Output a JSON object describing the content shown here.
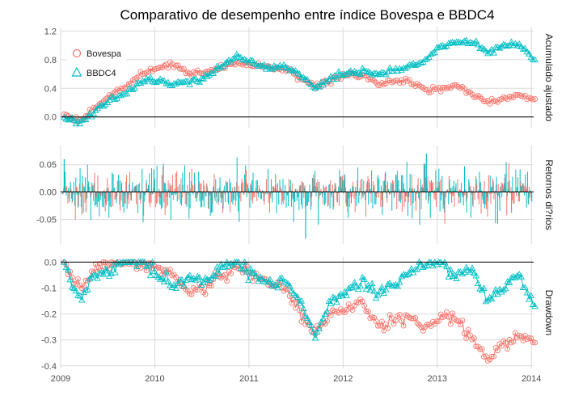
{
  "chart_data": {
    "type": "line",
    "title": "Comparativo de desempenho entre índice Bovespa e BBDC4",
    "x_range": [
      "2009-01-01",
      "2014-01-10"
    ],
    "x_ticks": [
      "2009",
      "2010",
      "2011",
      "2012",
      "2013",
      "2014"
    ],
    "grid": true,
    "legend": {
      "placement": "top-left",
      "entries": [
        {
          "name": "Bovespa",
          "color": "#F8766D",
          "shape": "circle"
        },
        {
          "name": "BBDC4",
          "color": "#00BFC4",
          "shape": "triangle"
        }
      ]
    },
    "panels": [
      {
        "strip_label": "Acumulado ajustado",
        "type": "line-with-markers",
        "ylim": [
          -0.15,
          1.25
        ],
        "y_ticks": [
          "0.0",
          "0.4",
          "0.8",
          "1.2"
        ],
        "y_tick_values": [
          0.0,
          0.4,
          0.8,
          1.2
        ],
        "zero_line": true,
        "x": [
          "2009-01",
          "2009-03",
          "2009-05",
          "2009-07",
          "2009-09",
          "2009-11",
          "2010-01",
          "2010-03",
          "2010-05",
          "2010-07",
          "2010-09",
          "2010-11",
          "2011-01",
          "2011-03",
          "2011-05",
          "2011-07",
          "2011-09",
          "2011-11",
          "2012-01",
          "2012-03",
          "2012-05",
          "2012-07",
          "2012-09",
          "2012-11",
          "2013-01",
          "2013-03",
          "2013-05",
          "2013-07",
          "2013-09",
          "2013-11",
          "2014-01"
        ],
        "series": [
          {
            "name": "Bovespa",
            "values": [
              0.0,
              -0.05,
              0.15,
              0.3,
              0.45,
              0.6,
              0.7,
              0.72,
              0.62,
              0.62,
              0.7,
              0.75,
              0.72,
              0.7,
              0.68,
              0.55,
              0.42,
              0.5,
              0.58,
              0.6,
              0.45,
              0.52,
              0.5,
              0.38,
              0.4,
              0.45,
              0.32,
              0.18,
              0.25,
              0.3,
              0.25
            ]
          },
          {
            "name": "BBDC4",
            "values": [
              0.0,
              -0.08,
              0.1,
              0.25,
              0.35,
              0.5,
              0.5,
              0.45,
              0.5,
              0.55,
              0.7,
              0.85,
              0.75,
              0.7,
              0.72,
              0.6,
              0.4,
              0.55,
              0.62,
              0.65,
              0.6,
              0.65,
              0.7,
              0.8,
              0.98,
              1.05,
              1.05,
              0.9,
              1.0,
              1.02,
              0.8
            ]
          }
        ]
      },
      {
        "strip_label": "Retornos di?rios",
        "type": "spikes",
        "ylim": [
          -0.095,
          0.085
        ],
        "y_ticks": [
          "0.05",
          "0.00",
          "-0.05"
        ],
        "y_tick_values": [
          0.05,
          0.0,
          -0.05
        ],
        "zero_line": true,
        "approx_daily_std": {
          "Bovespa": 0.018,
          "BBDC4": 0.022
        },
        "notable_values": [
          {
            "date": "2011-08-08",
            "series": "BBDC4",
            "value": -0.085
          },
          {
            "date": "2009-01-15",
            "series": "BBDC4",
            "value": 0.06
          },
          {
            "date": "2012-11-20",
            "series": "BBDC4",
            "value": 0.07
          }
        ]
      },
      {
        "strip_label": "Drawdown",
        "type": "line-with-markers",
        "ylim": [
          -0.41,
          0.02
        ],
        "y_ticks": [
          "0.0",
          "-0.1",
          "-0.2",
          "-0.3",
          "-0.4"
        ],
        "y_tick_values": [
          0.0,
          -0.1,
          -0.2,
          -0.3,
          -0.4
        ],
        "zero_line": true,
        "x": [
          "2009-01",
          "2009-03",
          "2009-05",
          "2009-07",
          "2009-09",
          "2009-11",
          "2010-01",
          "2010-03",
          "2010-05",
          "2010-07",
          "2010-09",
          "2010-11",
          "2011-01",
          "2011-03",
          "2011-05",
          "2011-07",
          "2011-09",
          "2011-11",
          "2012-01",
          "2012-03",
          "2012-05",
          "2012-07",
          "2012-09",
          "2012-11",
          "2013-01",
          "2013-03",
          "2013-05",
          "2013-07",
          "2013-09",
          "2013-11",
          "2014-01"
        ],
        "series": [
          {
            "name": "Bovespa",
            "values": [
              0.0,
              -0.1,
              -0.02,
              0.0,
              0.0,
              0.0,
              -0.02,
              -0.05,
              -0.12,
              -0.1,
              -0.05,
              -0.02,
              -0.05,
              -0.08,
              -0.1,
              -0.18,
              -0.28,
              -0.2,
              -0.18,
              -0.15,
              -0.25,
              -0.22,
              -0.22,
              -0.25,
              -0.2,
              -0.22,
              -0.28,
              -0.38,
              -0.32,
              -0.28,
              -0.31
            ]
          },
          {
            "name": "BBDC4",
            "values": [
              0.0,
              -0.15,
              -0.05,
              -0.02,
              0.0,
              0.0,
              -0.05,
              -0.1,
              -0.05,
              -0.08,
              -0.02,
              0.0,
              -0.05,
              -0.08,
              -0.07,
              -0.15,
              -0.28,
              -0.15,
              -0.12,
              -0.08,
              -0.12,
              -0.08,
              -0.04,
              0.0,
              0.0,
              -0.05,
              -0.03,
              -0.15,
              -0.1,
              -0.05,
              -0.17
            ]
          }
        ]
      }
    ]
  }
}
